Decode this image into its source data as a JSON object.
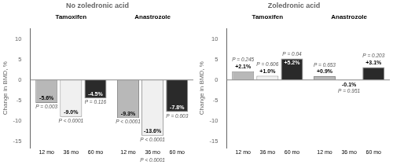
{
  "chart_data": [
    {
      "type": "bar",
      "title": "No zoledronic acid",
      "ylabel": "Change in BMD, %",
      "categories": [
        "Tamoxifen",
        "Anastrozole"
      ],
      "series": [
        {
          "name": "12 mo",
          "color": "#b8b8b8",
          "values": [
            -5.6,
            -9.3
          ],
          "value_labels": [
            "-5.6%",
            "-9.3%"
          ],
          "p_values": [
            "P = 0.003",
            "P < 0.0001"
          ]
        },
        {
          "name": "36 mo",
          "color": "#f0f0f0",
          "values": [
            -9.0,
            -13.6
          ],
          "value_labels": [
            "-9.0%",
            "-13.6%"
          ],
          "p_values": [
            "P < 0.0001",
            "P < 0.0001"
          ]
        },
        {
          "name": "60 mo",
          "color": "#2a2a2a",
          "values": [
            -4.5,
            -7.8
          ],
          "value_labels": [
            "-4.5%",
            "-7.8%"
          ],
          "p_values": [
            "P = 0.116",
            "P = 0.003"
          ]
        }
      ],
      "annotations": [
        {
          "text": "P < 0.0001",
          "category": "Anastrozole"
        }
      ],
      "ylim": [
        -16.5,
        12.5
      ],
      "yticks": [
        -15,
        -10,
        -5,
        0,
        5,
        10
      ],
      "grid": false,
      "data_labels": true
    },
    {
      "type": "bar",
      "title": "Zoledronic acid",
      "ylabel": "Change in BMD, %",
      "categories": [
        "Tamoxifen",
        "Anastrozole"
      ],
      "series": [
        {
          "name": "12 mo",
          "color": "#b8b8b8",
          "values": [
            2.1,
            0.9
          ],
          "value_labels": [
            "+2.1%",
            "+0.9%"
          ],
          "p_values": [
            "P = 0.245",
            "P = 0.653"
          ]
        },
        {
          "name": "36 mo",
          "color": "#f0f0f0",
          "values": [
            1.0,
            -0.1
          ],
          "value_labels": [
            "+1.0%",
            "-0.1%"
          ],
          "p_values": [
            "P = 0.606",
            "P = 0.951"
          ]
        },
        {
          "name": "60 mo",
          "color": "#2a2a2a",
          "values": [
            5.2,
            3.1
          ],
          "value_labels": [
            "+5.2%",
            "+3.1%"
          ],
          "p_values": [
            "P = 0.04",
            "P = 0.203"
          ]
        }
      ],
      "ylim": [
        -16.5,
        12.5
      ],
      "yticks": [
        -15,
        -10,
        -5,
        0,
        5,
        10
      ],
      "grid": false,
      "data_labels": true
    }
  ]
}
